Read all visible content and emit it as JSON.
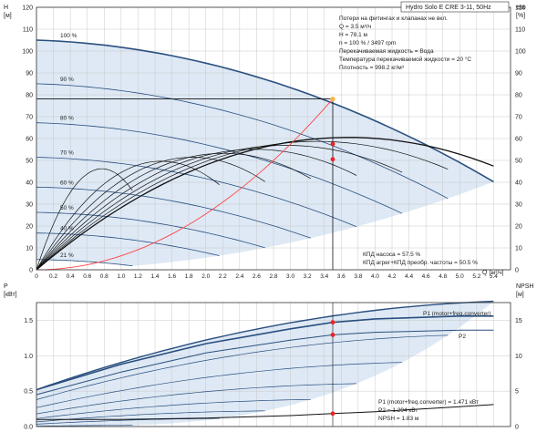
{
  "chart_data": [
    {
      "type": "line",
      "title": "Hydro Solo E CRE 3-11, 50Hz",
      "left_axis": {
        "label": "H",
        "unit": "[м]",
        "ylim": [
          0,
          120
        ],
        "ticks": [
          "0",
          "10",
          "20",
          "30",
          "40",
          "50",
          "60",
          "70",
          "80",
          "90",
          "100",
          "110",
          "120"
        ]
      },
      "right_axis": {
        "label": "eta",
        "unit": "[%]",
        "ylim": [
          0,
          120
        ],
        "ticks": [
          "0",
          "10",
          "20",
          "30",
          "40",
          "50",
          "60",
          "70",
          "80",
          "90",
          "100",
          "110",
          "120"
        ]
      },
      "x_axis": {
        "label": "Q",
        "unit": "[м³/ч]",
        "xlim": [
          0,
          5.6
        ],
        "ticks": [
          "0",
          "0.2",
          "0.4",
          "0.6",
          "0.8",
          "1.0",
          "1.2",
          "1.4",
          "1.6",
          "1.8",
          "2.0",
          "2.2",
          "2.4",
          "2.6",
          "2.8",
          "3.0",
          "3.2",
          "3.4",
          "3.6",
          "3.8",
          "4.0",
          "4.2",
          "4.4",
          "4.6",
          "4.8",
          "5.0",
          "5.2",
          "5.4"
        ]
      },
      "speed_labels": [
        "100 %",
        "90 %",
        "80 %",
        "70 %",
        "60 %",
        "50 %",
        "40 %",
        "21 %"
      ],
      "speed_fractions": [
        1.0,
        0.9,
        0.8,
        0.7,
        0.6,
        0.5,
        0.4,
        0.21
      ],
      "series": [
        {
          "name": "H 100 %",
          "x": [
            0,
            1,
            2,
            3,
            3.5,
            4,
            5,
            5.4
          ],
          "y": [
            105,
            99,
            92,
            83,
            78.1,
            71,
            53,
            41
          ]
        }
      ],
      "operating_point": {
        "q": 3.5,
        "h": 78.1,
        "eta_pump": 57.5,
        "eta_total": 50.5
      },
      "info_lines": [
        "Потери на фитингах и клапанах не вкл.",
        "Q = 3.5 м³/ч",
        "H = 78.1 м",
        "n = 100 % / 3497 rpm",
        "Перекачиваемая жидкость = Вода",
        "Температура перекачиваемой жидкости = 20 °C",
        "Плотность = 998.2 кг/м³"
      ],
      "efficiency_lines": [
        "КПД насоса = 57.5 %",
        "КПД агрег+КПД преобр. частоты = 50.5 %"
      ],
      "grid": true
    },
    {
      "type": "line",
      "left_axis": {
        "label": "P",
        "unit": "[кВт]",
        "ylim": [
          0,
          1.5
        ],
        "ticks": [
          "0.0",
          "0.5",
          "1.0",
          "1.5"
        ]
      },
      "right_axis": {
        "label": "NPSH",
        "unit": "[м]",
        "ylim": [
          0,
          15
        ],
        "ticks": [
          "0",
          "5",
          "10",
          "15"
        ]
      },
      "series": [
        {
          "name": "P1 (motor+freq.converter)",
          "x": [
            0,
            1,
            2,
            3,
            3.5,
            4,
            5,
            5.4
          ],
          "y": [
            0.52,
            0.88,
            1.17,
            1.38,
            1.471,
            1.52,
            1.56,
            1.56
          ]
        },
        {
          "name": "P2",
          "x": [
            0,
            1,
            2,
            3,
            3.5,
            4,
            5,
            5.4
          ],
          "y": [
            0.45,
            0.77,
            1.04,
            1.22,
            1.294,
            1.33,
            1.36,
            1.36
          ]
        },
        {
          "name": "NPSH",
          "x": [
            0,
            1,
            2,
            3,
            3.5,
            4,
            5,
            5.4
          ],
          "y": [
            1.0,
            1.0,
            1.2,
            1.55,
            1.83,
            2.1,
            2.8,
            3.1
          ]
        }
      ],
      "legend_lines": [
        "P1 (motor+freq.converter) = 1.471 кВт",
        "P2 = 1.294 кВт",
        "NPSH = 1.83 м"
      ],
      "operating_point": {
        "q": 3.5,
        "p1": 1.471,
        "p2": 1.294,
        "npsh": 1.83
      }
    }
  ],
  "colors": {
    "envelope": "#d6e4f2",
    "hq_curve": "#2a4f7f",
    "eta_curve": "#111111",
    "system_curve": "#ff4444",
    "marker": "#ee2222",
    "op_point": "#ffb347"
  }
}
